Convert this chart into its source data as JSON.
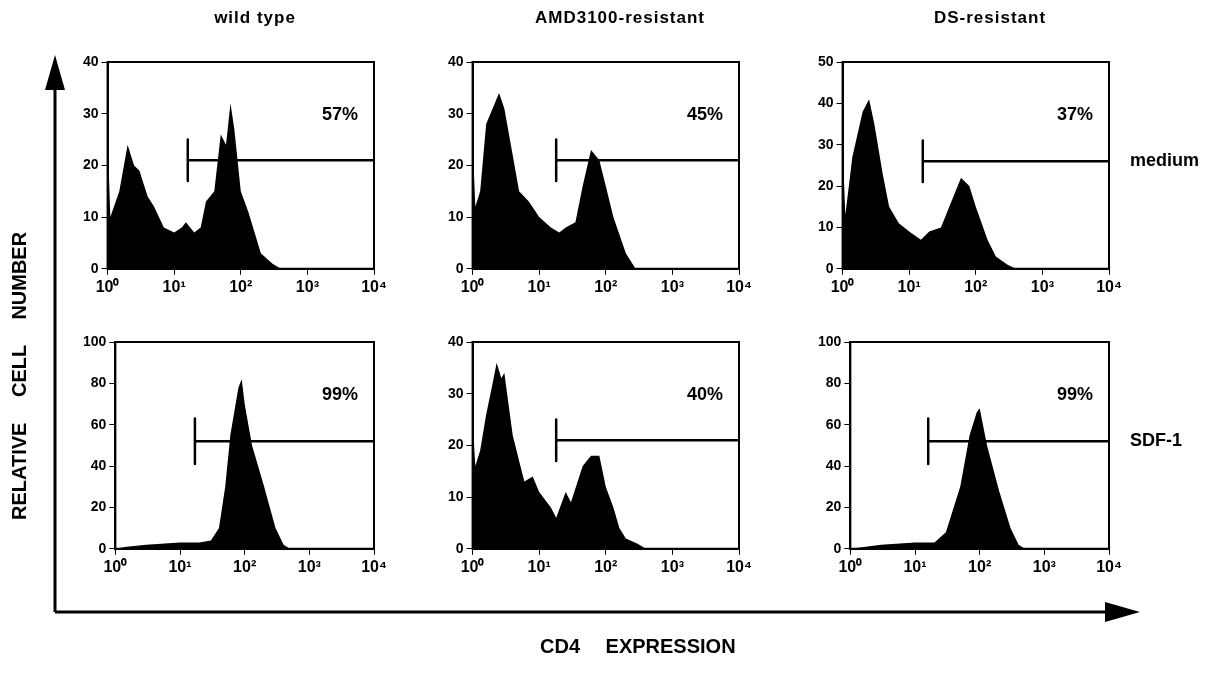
{
  "chart_data": [
    {
      "type": "area",
      "title": "wild type",
      "log": "x",
      "xlim": [
        1,
        10000
      ],
      "ylim": [
        0,
        40
      ],
      "xticks": [
        {
          "value": 1,
          "label": "10⁰"
        },
        {
          "value": 10,
          "label": "10¹"
        },
        {
          "value": 100,
          "label": "10²"
        },
        {
          "value": 1000,
          "label": "10³"
        },
        {
          "value": 10000,
          "label": "10⁴"
        }
      ],
      "yticks": [
        0,
        10,
        20,
        30,
        40
      ],
      "grid": false,
      "legend": false,
      "annotations": [
        "57%",
        "RELATIVE CELL NUMBER",
        "CD4 EXPRESSION"
      ],
      "series": [
        {
          "color": "#000000",
          "x": [
            1,
            1.1,
            1.5,
            2,
            2.5,
            3,
            4,
            5,
            7,
            10,
            13,
            15,
            20,
            25,
            30,
            40,
            50,
            60,
            70,
            80,
            100,
            130,
            200,
            300,
            400,
            10000
          ],
          "values": [
            26,
            10,
            15,
            24,
            20,
            19,
            14,
            12,
            8,
            7,
            8,
            9,
            7,
            8,
            13,
            15,
            26,
            24,
            32,
            27,
            15,
            11,
            3,
            1,
            0,
            0
          ]
        },
        {
          "type": "line",
          "color": "#000000",
          "x": [
            16,
            16,
            16,
            10000
          ],
          "values": [
            25,
            17,
            21,
            21
          ]
        }
      ]
    },
    {
      "type": "area",
      "title": "AMD3100-resistant",
      "log": "x",
      "xlim": [
        1,
        10000
      ],
      "ylim": [
        0,
        40
      ],
      "xticks": [
        {
          "value": 1,
          "label": "10⁰"
        },
        {
          "value": 10,
          "label": "10¹"
        },
        {
          "value": 100,
          "label": "10²"
        },
        {
          "value": 1000,
          "label": "10³"
        },
        {
          "value": 10000,
          "label": "10⁴"
        }
      ],
      "yticks": [
        0,
        10,
        20,
        30,
        40
      ],
      "grid": false,
      "legend": false,
      "annotations": [
        "45%"
      ],
      "series": [
        {
          "color": "#000000",
          "x": [
            1,
            1.1,
            1.3,
            1.6,
            2,
            2.5,
            3,
            4,
            5,
            7,
            10,
            15,
            20,
            25,
            35,
            45,
            60,
            80,
            100,
            130,
            200,
            280,
            10000
          ],
          "values": [
            25,
            12,
            15,
            28,
            31,
            34,
            31,
            22,
            15,
            13,
            10,
            8,
            7,
            8,
            9,
            16,
            23,
            21,
            16,
            10,
            3,
            0,
            0
          ]
        },
        {
          "type": "line",
          "color": "#000000",
          "x": [
            18,
            18,
            18,
            10000
          ],
          "values": [
            25,
            17,
            21,
            21
          ]
        }
      ]
    },
    {
      "type": "area",
      "title": "DS-resistant",
      "log": "x",
      "xlim": [
        1,
        10000
      ],
      "ylim": [
        0,
        50
      ],
      "xticks": [
        {
          "value": 1,
          "label": "10⁰"
        },
        {
          "value": 10,
          "label": "10¹"
        },
        {
          "value": 100,
          "label": "10²"
        },
        {
          "value": 1000,
          "label": "10³"
        },
        {
          "value": 10000,
          "label": "10⁴"
        }
      ],
      "yticks": [
        0,
        10,
        20,
        30,
        40,
        50
      ],
      "grid": false,
      "legend": false,
      "annotations": [
        "37%",
        "medium"
      ],
      "series": [
        {
          "color": "#000000",
          "x": [
            1,
            1.1,
            1.4,
            2,
            2.5,
            3,
            4,
            5,
            7,
            10,
            15,
            20,
            30,
            40,
            60,
            80,
            100,
            150,
            200,
            300,
            400,
            10000
          ],
          "values": [
            30,
            13,
            27,
            38,
            41,
            35,
            23,
            15,
            11,
            9,
            7,
            9,
            10,
            15,
            22,
            20,
            15,
            7,
            3,
            1,
            0,
            0
          ]
        },
        {
          "type": "line",
          "color": "#000000",
          "x": [
            16,
            16,
            16,
            10000
          ],
          "values": [
            31,
            21,
            26,
            26
          ]
        }
      ]
    },
    {
      "type": "area",
      "log": "x",
      "xlim": [
        1,
        10000
      ],
      "ylim": [
        0,
        100
      ],
      "xticks": [
        {
          "value": 1,
          "label": "10⁰"
        },
        {
          "value": 10,
          "label": "10¹"
        },
        {
          "value": 100,
          "label": "10²"
        },
        {
          "value": 1000,
          "label": "10³"
        },
        {
          "value": 10000,
          "label": "10⁴"
        }
      ],
      "yticks": [
        0,
        20,
        40,
        60,
        80,
        100
      ],
      "grid": false,
      "legend": false,
      "annotations": [
        "99%"
      ],
      "series": [
        {
          "color": "#000000",
          "x": [
            1,
            1.5,
            3,
            10,
            20,
            30,
            40,
            50,
            60,
            80,
            90,
            100,
            130,
            200,
            300,
            400,
            500,
            10000
          ],
          "values": [
            0,
            1,
            2,
            3,
            3,
            4,
            10,
            30,
            55,
            78,
            82,
            70,
            50,
            30,
            10,
            2,
            0,
            0
          ]
        },
        {
          "type": "line",
          "color": "#000000",
          "x": [
            17,
            17,
            17,
            10000
          ],
          "values": [
            63,
            41,
            52,
            52
          ]
        }
      ]
    },
    {
      "type": "area",
      "log": "x",
      "xlim": [
        1,
        10000
      ],
      "ylim": [
        0,
        40
      ],
      "xticks": [
        {
          "value": 1,
          "label": "10⁰"
        },
        {
          "value": 10,
          "label": "10¹"
        },
        {
          "value": 100,
          "label": "10²"
        },
        {
          "value": 1000,
          "label": "10³"
        },
        {
          "value": 10000,
          "label": "10⁴"
        }
      ],
      "yticks": [
        0,
        10,
        20,
        30,
        40
      ],
      "grid": false,
      "legend": false,
      "annotations": [
        "40%"
      ],
      "series": [
        {
          "color": "#000000",
          "x": [
            1,
            1.1,
            1.3,
            1.6,
            2,
            2.3,
            2.7,
            3,
            4,
            5,
            6,
            8,
            10,
            15,
            18,
            25,
            30,
            45,
            60,
            80,
            100,
            130,
            160,
            200,
            300,
            400,
            10000
          ],
          "values": [
            25,
            16,
            19,
            26,
            32,
            36,
            33,
            34,
            22,
            17,
            13,
            14,
            11,
            8,
            6,
            11,
            9,
            16,
            18,
            18,
            12,
            8,
            4,
            2,
            1,
            0,
            0
          ]
        },
        {
          "type": "line",
          "color": "#000000",
          "x": [
            18,
            18,
            18,
            10000
          ],
          "values": [
            25,
            17,
            21,
            21
          ]
        }
      ]
    },
    {
      "type": "area",
      "log": "x",
      "xlim": [
        1,
        10000
      ],
      "ylim": [
        0,
        100
      ],
      "xticks": [
        {
          "value": 1,
          "label": "10⁰"
        },
        {
          "value": 10,
          "label": "10¹"
        },
        {
          "value": 100,
          "label": "10²"
        },
        {
          "value": 1000,
          "label": "10³"
        },
        {
          "value": 10000,
          "label": "10⁴"
        }
      ],
      "yticks": [
        0,
        20,
        40,
        60,
        80,
        100
      ],
      "grid": false,
      "legend": false,
      "annotations": [
        "99%",
        "SDF-1"
      ],
      "series": [
        {
          "color": "#000000",
          "x": [
            1,
            3,
            10,
            20,
            30,
            50,
            70,
            90,
            100,
            130,
            200,
            300,
            400,
            500,
            10000
          ],
          "values": [
            0,
            2,
            3,
            3,
            8,
            30,
            55,
            66,
            68,
            50,
            28,
            10,
            2,
            0,
            0
          ]
        },
        {
          "type": "line",
          "color": "#000000",
          "x": [
            16,
            16,
            16,
            10000
          ],
          "values": [
            63,
            41,
            52,
            52
          ]
        }
      ]
    }
  ]
}
